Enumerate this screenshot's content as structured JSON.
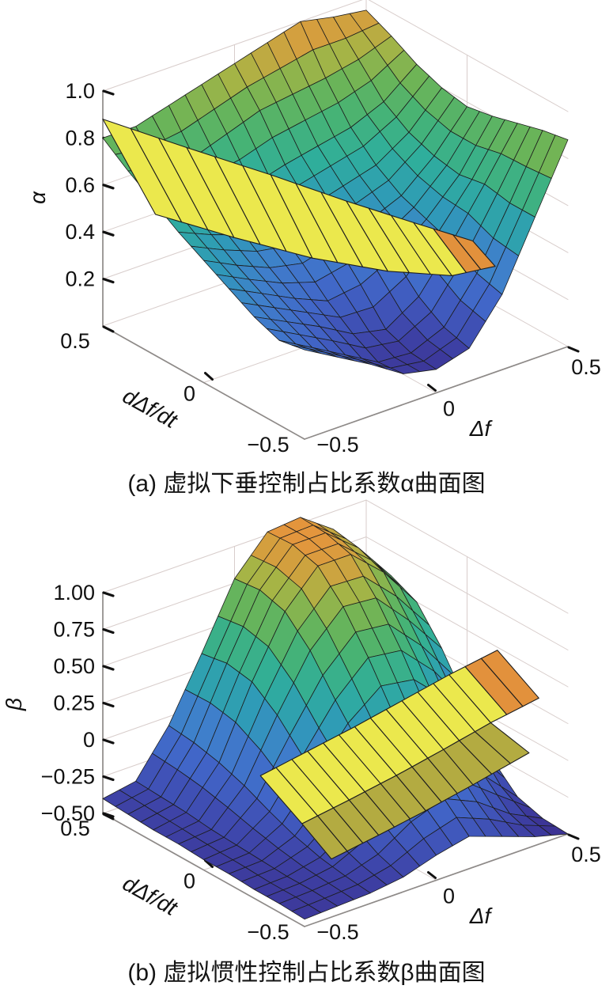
{
  "figure": {
    "background": "#ffffff"
  },
  "captions": {
    "a": "(a) 虚拟下垂控制占比系数α曲面图",
    "b": "(b) 虚拟惯性控制占比系数β曲面图"
  },
  "colors": {
    "ribbon": "#ebe84d",
    "ribbon_tip": "#e2913c",
    "ribbon_under": "#b3ab41",
    "surface_edge": "#1d1d1d",
    "grid_line": "#d8cdcb",
    "axis_line": "#8e8a88",
    "tick": "#111111",
    "text": "#111111"
  },
  "colormap": [
    [
      0.0,
      "#3b2f90"
    ],
    [
      0.1,
      "#3f4bb0"
    ],
    [
      0.22,
      "#4166c8"
    ],
    [
      0.34,
      "#3f7fcb"
    ],
    [
      0.45,
      "#2f9ab8"
    ],
    [
      0.57,
      "#2fae9b"
    ],
    [
      0.68,
      "#47b374"
    ],
    [
      0.78,
      "#6cb457"
    ],
    [
      0.87,
      "#a8b445"
    ],
    [
      0.93,
      "#cfa23f"
    ],
    [
      1.0,
      "#e8933c"
    ]
  ],
  "chart_data": [
    {
      "type": "surface",
      "id": "alpha",
      "caption": "(a) 虚拟下垂控制占比系数α曲面图",
      "xlabel": "Δf",
      "ylabel": "dΔf/dt",
      "zlabel": "α",
      "xlim": [
        -0.5,
        0.5
      ],
      "ylim": [
        -0.5,
        0.5
      ],
      "zlim": [
        0,
        1.0
      ],
      "caxis": [
        0.08,
        1.0
      ],
      "x_ticks": [
        {
          "v": -0.5,
          "label": "−0.5"
        },
        {
          "v": 0,
          "label": "0"
        },
        {
          "v": 0.5,
          "label": "0.5"
        }
      ],
      "y_ticks": [
        {
          "v": 0.5,
          "label": "0.5"
        },
        {
          "v": 0,
          "label": "0"
        },
        {
          "v": -0.5,
          "label": "−0.5"
        }
      ],
      "z_ticks": [
        {
          "v": 1.0,
          "label": "1.0"
        },
        {
          "v": 0.8,
          "label": "0.8"
        },
        {
          "v": 0.6,
          "label": "0.6"
        },
        {
          "v": 0.4,
          "label": "0.4"
        },
        {
          "v": 0.2,
          "label": "0.2"
        }
      ],
      "x_values": [
        -0.5,
        -0.375,
        -0.25,
        -0.125,
        0,
        0.125,
        0.25,
        0.375,
        0.5
      ],
      "y_values": [
        -0.5,
        -0.375,
        -0.25,
        -0.125,
        0,
        0.125,
        0.25,
        0.375,
        0.5
      ],
      "z_grid": [
        [
          0.38,
          0.3,
          0.22,
          0.13,
          0.1,
          0.14,
          0.32,
          0.6,
          0.88
        ],
        [
          0.36,
          0.28,
          0.2,
          0.12,
          0.11,
          0.17,
          0.35,
          0.6,
          0.86
        ],
        [
          0.4,
          0.33,
          0.26,
          0.18,
          0.15,
          0.24,
          0.42,
          0.62,
          0.83
        ],
        [
          0.46,
          0.39,
          0.32,
          0.26,
          0.28,
          0.35,
          0.46,
          0.6,
          0.8
        ],
        [
          0.52,
          0.45,
          0.39,
          0.36,
          0.4,
          0.44,
          0.5,
          0.62,
          0.78
        ],
        [
          0.58,
          0.52,
          0.47,
          0.45,
          0.49,
          0.53,
          0.57,
          0.66,
          0.8
        ],
        [
          0.65,
          0.6,
          0.57,
          0.57,
          0.61,
          0.64,
          0.67,
          0.73,
          0.84
        ],
        [
          0.72,
          0.68,
          0.68,
          0.73,
          0.78,
          0.8,
          0.82,
          0.85,
          0.9
        ],
        [
          0.8,
          0.8,
          0.84,
          0.88,
          0.92,
          0.96,
          1.0,
          0.97,
          0.95
        ]
      ],
      "ribbon": {
        "crest": [
          [
            -0.5,
            0.5,
            0.88
          ],
          [
            -0.3,
            0.345,
            0.755
          ],
          [
            -0.1,
            0.19,
            0.635
          ],
          [
            0.08,
            0.05,
            0.52
          ],
          [
            0.24,
            -0.075,
            0.425
          ],
          [
            0.38,
            -0.185,
            0.345
          ]
        ],
        "lower": [
          [
            -0.48,
            0.265,
            0.58
          ],
          [
            -0.285,
            0.13,
            0.47
          ],
          [
            -0.095,
            -0.01,
            0.375
          ],
          [
            0.1,
            -0.13,
            0.3
          ],
          [
            0.27,
            -0.225,
            0.26
          ],
          [
            0.4,
            -0.27,
            0.27
          ]
        ]
      }
    },
    {
      "type": "surface",
      "id": "beta",
      "caption": "(b) 虚拟惯性控制占比系数β曲面图",
      "xlabel": "Δf",
      "ylabel": "dΔf/dt",
      "zlabel": "β",
      "xlim": [
        -0.5,
        0.5
      ],
      "ylim": [
        -0.5,
        0.5
      ],
      "zlim": [
        -0.5,
        1.0
      ],
      "caxis": [
        -0.5,
        1.05
      ],
      "x_ticks": [
        {
          "v": -0.5,
          "label": "−0.5"
        },
        {
          "v": 0,
          "label": "0"
        },
        {
          "v": 0.5,
          "label": "0.5"
        }
      ],
      "y_ticks": [
        {
          "v": 0.5,
          "label": "0.5"
        },
        {
          "v": 0,
          "label": "0"
        },
        {
          "v": -0.5,
          "label": "−0.5"
        }
      ],
      "z_ticks": [
        {
          "v": 1.0,
          "label": "1.00"
        },
        {
          "v": 0.75,
          "label": "0.75"
        },
        {
          "v": 0.5,
          "label": "0.50"
        },
        {
          "v": 0.25,
          "label": "0.25"
        },
        {
          "v": 0,
          "label": "0"
        },
        {
          "v": -0.25,
          "label": "−0.25"
        },
        {
          "v": -0.5,
          "label": "−0.50"
        }
      ],
      "x_values": [
        -0.5,
        -0.375,
        -0.25,
        -0.125,
        0,
        0.125,
        0.25,
        0.375,
        0.5
      ],
      "y_values": [
        -0.5,
        -0.375,
        -0.25,
        -0.125,
        0,
        0.125,
        0.25,
        0.375,
        0.5
      ],
      "z_grid": [
        [
          -0.45,
          -0.44,
          -0.43,
          -0.4,
          -0.33,
          -0.28,
          -0.36,
          -0.44,
          -0.5
        ],
        [
          -0.44,
          -0.43,
          -0.41,
          -0.34,
          -0.2,
          -0.12,
          -0.22,
          -0.38,
          -0.49
        ],
        [
          -0.44,
          -0.43,
          -0.38,
          -0.24,
          -0.06,
          0.04,
          -0.04,
          -0.22,
          -0.44
        ],
        [
          -0.43,
          -0.42,
          -0.33,
          -0.12,
          0.12,
          0.26,
          0.22,
          0.02,
          -0.28
        ],
        [
          -0.43,
          -0.41,
          -0.26,
          0.04,
          0.34,
          0.55,
          0.52,
          0.3,
          0.0
        ],
        [
          -0.42,
          -0.4,
          -0.18,
          0.22,
          0.58,
          0.8,
          0.78,
          0.55,
          0.28
        ],
        [
          -0.42,
          -0.38,
          -0.12,
          0.35,
          0.75,
          0.98,
          0.98,
          0.78,
          0.5
        ],
        [
          -0.41,
          -0.37,
          -0.08,
          0.38,
          0.8,
          1.03,
          1.03,
          0.85,
          0.58
        ],
        [
          -0.4,
          -0.36,
          -0.06,
          0.35,
          0.78,
          1.02,
          1.04,
          0.88,
          0.62
        ]
      ],
      "ribbon": {
        "crest": [
          [
            -0.3,
            -0.02,
            0.03
          ],
          [
            -0.14,
            -0.045,
            0.115
          ],
          [
            0.02,
            -0.07,
            0.2
          ],
          [
            0.18,
            -0.095,
            0.295
          ],
          [
            0.34,
            -0.12,
            0.39
          ],
          [
            0.5,
            -0.15,
            0.48
          ]
        ],
        "lower": [
          [
            -0.28,
            -0.2,
            -0.17
          ],
          [
            -0.12,
            -0.225,
            -0.09
          ],
          [
            0.04,
            -0.25,
            -0.005
          ],
          [
            0.2,
            -0.275,
            0.09
          ],
          [
            0.36,
            -0.3,
            0.19
          ],
          [
            0.52,
            -0.33,
            0.28
          ]
        ],
        "under": {
          "points": [
            [
              -0.26,
              -0.32,
              -0.33
            ],
            [
              -0.1,
              -0.345,
              -0.25
            ],
            [
              0.06,
              -0.37,
              -0.165
            ],
            [
              0.22,
              -0.395,
              -0.07
            ],
            [
              0.41,
              -0.425,
              0.05
            ]
          ]
        }
      }
    }
  ]
}
